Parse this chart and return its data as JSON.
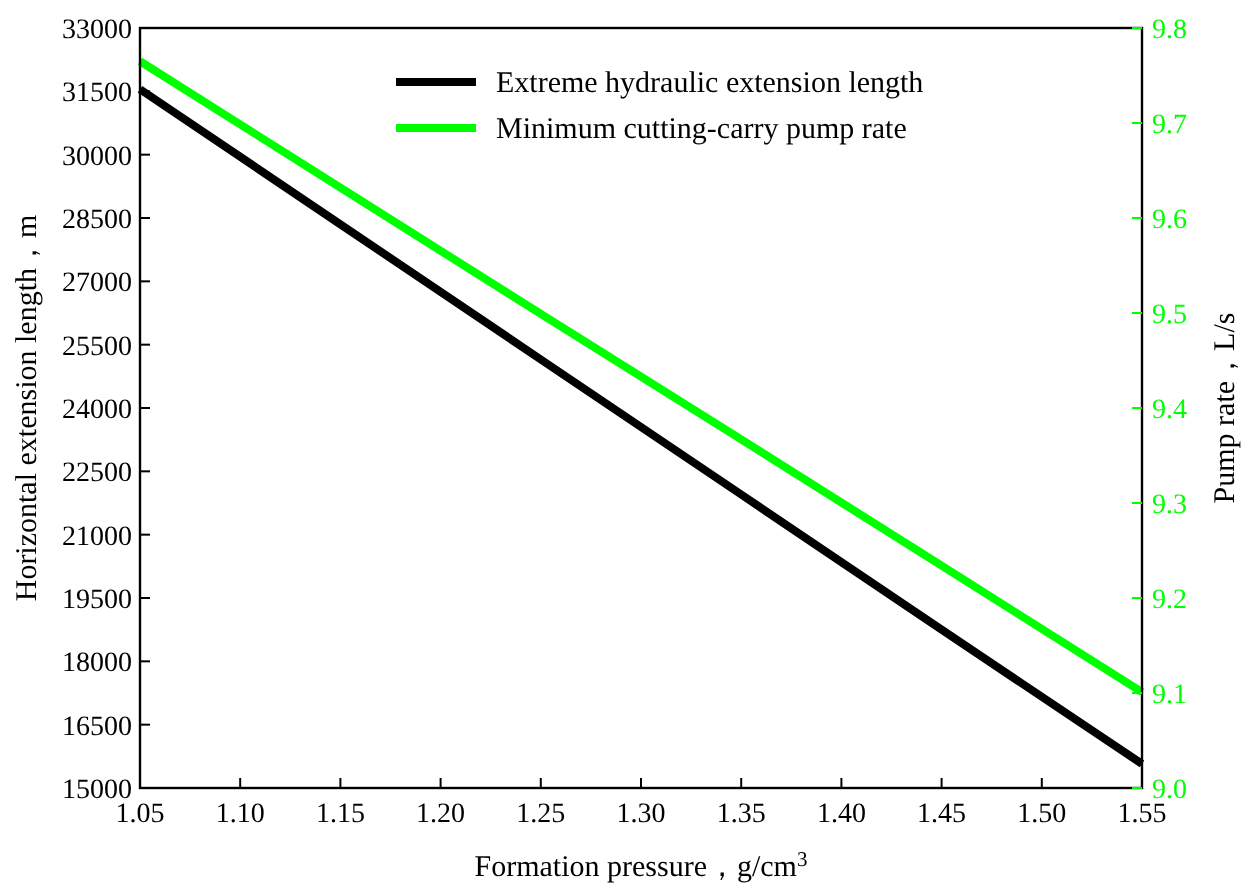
{
  "chart_data": {
    "type": "line",
    "xlabel": "Formation pressure，g/cm$^{3}$",
    "ylabel": "Horizontal extension length，m",
    "y2label": "Pump rate，L/s",
    "x": [
      1.05,
      1.15,
      1.25,
      1.35,
      1.45,
      1.55
    ],
    "series": [
      {
        "name": "Extreme hydraulic extension length",
        "color": "#000000",
        "values": [
          31550,
          28350,
          25150,
          21950,
          18750,
          15570
        ]
      },
      {
        "name": "Minimum cutting-carry pump rate",
        "color": "#00ff00",
        "axis": "y2",
        "values": [
          9.765,
          9.632,
          9.499,
          9.367,
          9.234,
          9.101
        ]
      }
    ],
    "xlim": [
      1.05,
      1.55
    ],
    "xticks": [
      {
        "value": 1.05,
        "label": "1.05"
      },
      {
        "value": 1.1,
        "label": "1.10"
      },
      {
        "value": 1.15,
        "label": "1.15"
      },
      {
        "value": 1.2,
        "label": "1.20"
      },
      {
        "value": 1.25,
        "label": "1.25"
      },
      {
        "value": 1.3,
        "label": "1.30"
      },
      {
        "value": 1.35,
        "label": "1.35"
      },
      {
        "value": 1.4,
        "label": "1.40"
      },
      {
        "value": 1.45,
        "label": "1.45"
      },
      {
        "value": 1.5,
        "label": "1.50"
      },
      {
        "value": 1.55,
        "label": "1.55"
      }
    ],
    "ylim": [
      15000,
      33000
    ],
    "yticks": [
      15000,
      16500,
      18000,
      19500,
      21000,
      22500,
      24000,
      25500,
      27000,
      28500,
      30000,
      31500,
      33000
    ],
    "y2lim": [
      9.0,
      9.8
    ],
    "y2ticks": [
      {
        "value": 9.0,
        "label": "9.0"
      },
      9.1,
      9.2,
      9.3,
      9.4,
      9.5,
      9.6,
      9.7,
      9.8
    ],
    "legend": "top",
    "grid": false,
    "marker": "none",
    "line_style": "solid"
  }
}
